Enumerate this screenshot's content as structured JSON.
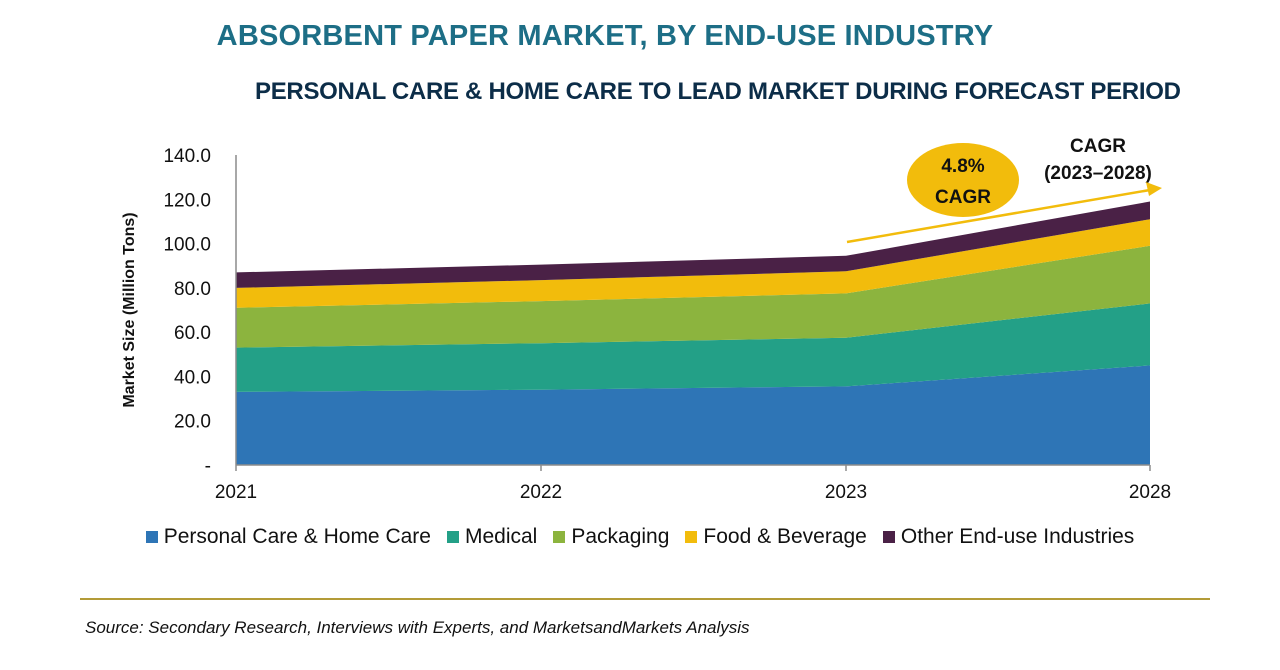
{
  "chart_data": {
    "type": "area",
    "stacked": true,
    "title": "ABSORBENT PAPER MARKET, BY END-USE INDUSTRY",
    "subtitle": "PERSONAL CARE & HOME CARE TO LEAD MARKET DURING FORECAST PERIOD",
    "xlabel": "",
    "ylabel": "Market Size (Million Tons)",
    "categories": [
      "2021",
      "2022",
      "2023",
      "2028"
    ],
    "yticks": [
      "-",
      "20.0",
      "40.0",
      "60.0",
      "80.0",
      "100.0",
      "120.0",
      "140.0"
    ],
    "ylim": [
      0,
      140
    ],
    "series": [
      {
        "name": "Personal Care & Home Care",
        "color": "#2e75b6",
        "values": [
          33,
          34,
          35.5,
          45
        ]
      },
      {
        "name": "Medical",
        "color": "#23a087",
        "values": [
          20,
          21,
          22,
          28
        ]
      },
      {
        "name": "Packaging",
        "color": "#8cb43e",
        "values": [
          18,
          19,
          20,
          26
        ]
      },
      {
        "name": "Food & Beverage",
        "color": "#f2bc0c",
        "values": [
          9,
          9.5,
          10,
          12
        ]
      },
      {
        "name": "Other End-use Industries",
        "color": "#4a2146",
        "values": [
          7,
          7,
          7,
          8
        ]
      }
    ],
    "annotations": {
      "cagr_bubble_value": "4.8%",
      "cagr_bubble_label": "CAGR",
      "cagr_period_line1": "CAGR",
      "cagr_period_line2": "(2023–2028)"
    }
  },
  "source": "Source: Secondary Research, Interviews with Experts, and MarketsandMarkets Analysis",
  "colors": {
    "title": "#1d6e86",
    "subtitle": "#0c2d48",
    "axis": "#8c8c8c",
    "arrow": "#f2bc0c",
    "rule": "#b39b38"
  }
}
